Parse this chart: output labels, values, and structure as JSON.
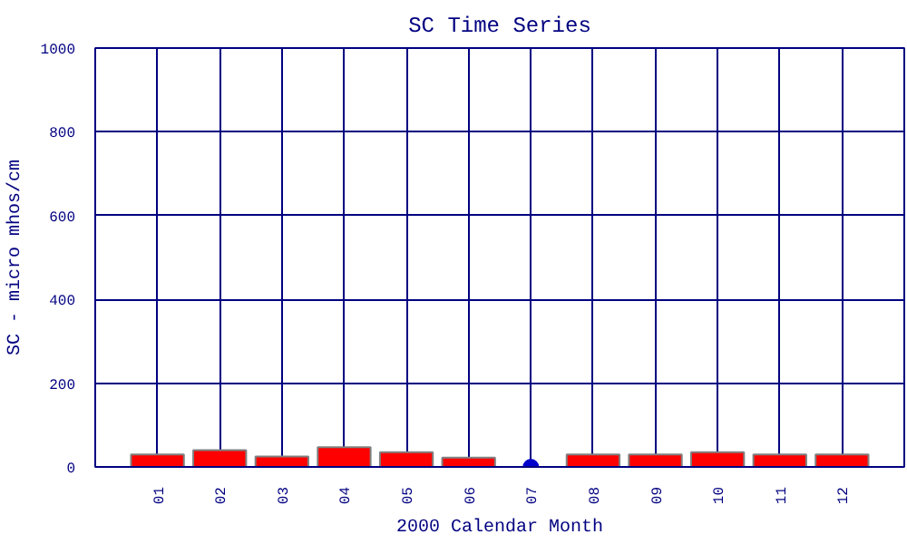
{
  "chart_data": {
    "type": "bar",
    "title": "SC Time Series",
    "xlabel": "2000 Calendar Month",
    "ylabel": "SC - micro mhos/cm",
    "categories": [
      "01",
      "02",
      "03",
      "04",
      "05",
      "06",
      "07",
      "08",
      "09",
      "10",
      "11",
      "12"
    ],
    "series": [
      {
        "color": "#ff0000",
        "values": [
          30,
          40,
          25,
          47,
          35,
          22,
          null,
          30,
          30,
          35,
          30,
          30
        ]
      },
      {
        "type": "scatter",
        "color": "#0000cc",
        "x": [
          "07"
        ],
        "values": [
          0
        ]
      }
    ],
    "ylim": [
      0,
      1000
    ],
    "yticks": [
      0,
      200,
      400,
      600,
      800,
      1000
    ],
    "grid": true,
    "marker": "circle"
  }
}
